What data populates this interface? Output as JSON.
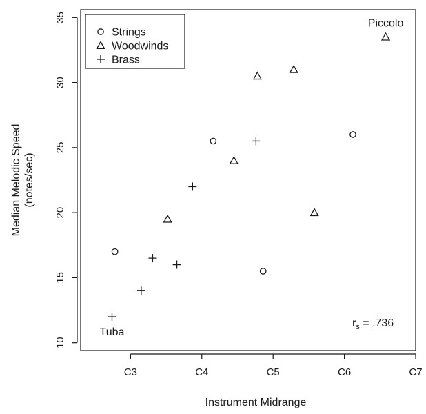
{
  "chart_data": {
    "type": "scatter",
    "title": "",
    "xlabel": "Instrument Midrange",
    "ylabel_lines": [
      "Median Melodic Speed",
      "(notes/sec)"
    ],
    "x_ticks": [
      "C3",
      "C4",
      "C5",
      "C6",
      "C7"
    ],
    "x_tick_values": [
      3,
      4,
      5,
      6,
      7
    ],
    "xlim": [
      2.3,
      7.0
    ],
    "y_ticks": [
      "10",
      "15",
      "20",
      "25",
      "30",
      "35"
    ],
    "y_tick_values": [
      10,
      15,
      20,
      25,
      30,
      35
    ],
    "ylim": [
      9.4,
      35.6
    ],
    "legend_position": "top-left",
    "series": [
      {
        "name": "Strings",
        "marker": "circle",
        "points": [
          {
            "x": 2.78,
            "y": 17.0
          },
          {
            "x": 4.16,
            "y": 25.5
          },
          {
            "x": 4.86,
            "y": 15.5
          },
          {
            "x": 6.12,
            "y": 26.0
          }
        ]
      },
      {
        "name": "Woodwinds",
        "marker": "triangle",
        "points": [
          {
            "x": 3.52,
            "y": 19.5
          },
          {
            "x": 4.45,
            "y": 24.0
          },
          {
            "x": 4.78,
            "y": 30.5
          },
          {
            "x": 5.29,
            "y": 31.0
          },
          {
            "x": 5.58,
            "y": 20.0
          },
          {
            "x": 6.58,
            "y": 33.5
          }
        ]
      },
      {
        "name": "Brass",
        "marker": "plus",
        "points": [
          {
            "x": 2.74,
            "y": 12.0
          },
          {
            "x": 3.15,
            "y": 14.0
          },
          {
            "x": 3.31,
            "y": 16.5
          },
          {
            "x": 3.65,
            "y": 16.0
          },
          {
            "x": 3.87,
            "y": 22.0
          },
          {
            "x": 4.76,
            "y": 25.5
          }
        ]
      }
    ],
    "point_labels": [
      {
        "text": "Tuba",
        "x": 2.74,
        "y": 12.0,
        "position": "below"
      },
      {
        "text": "Piccolo",
        "x": 6.58,
        "y": 33.5,
        "position": "above"
      }
    ],
    "stat_label": {
      "main": "r",
      "subscript": "s",
      "value": " = .736"
    },
    "stat_position": "bottom-right"
  }
}
